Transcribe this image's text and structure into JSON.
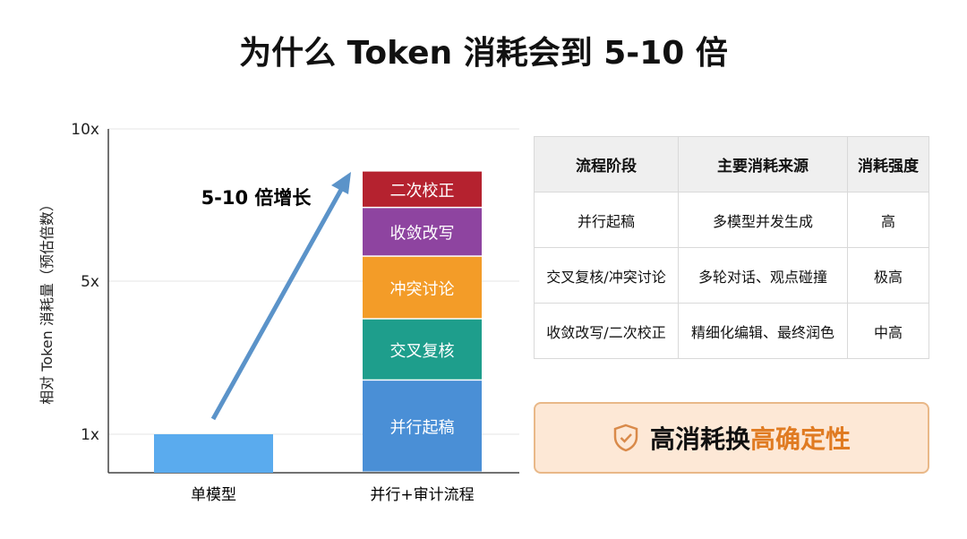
{
  "title": "为什么 Token 消耗会到 5-10 倍",
  "chart_data": {
    "type": "bar",
    "stacked": true,
    "title": "为什么 Token 消耗会到 5-10 倍",
    "ylabel": "相对 Token 消耗量（预估倍数）",
    "xlabel": "",
    "yticks": [
      "1x",
      "5x",
      "10x"
    ],
    "ytick_values": [
      1,
      5,
      10
    ],
    "ylim": [
      0,
      10
    ],
    "grid": true,
    "categories": [
      "单模型",
      "并行+审计流程"
    ],
    "single": {
      "category": "单模型",
      "value": 1,
      "color": "#5aabee"
    },
    "stack": [
      {
        "name": "并行起稿",
        "value": 2.4,
        "color": "#4a8fd6"
      },
      {
        "name": "交叉复核",
        "value": 1.6,
        "color": "#1e9e8c"
      },
      {
        "name": "冲突讨论",
        "value": 1.8,
        "color": "#f39c28"
      },
      {
        "name": "收敛改写",
        "value": 1.6,
        "color": "#8e44a0"
      },
      {
        "name": "二次校正",
        "value": 1.2,
        "color": "#b5222f"
      }
    ],
    "annotation": "5-10 倍增长",
    "arrow_color": "#5b93c9"
  },
  "table": {
    "headers": [
      "流程阶段",
      "主要消耗来源",
      "消耗强度"
    ],
    "rows": [
      [
        "并行起稿",
        "多模型并发生成",
        "高"
      ],
      [
        "交叉复核/冲突讨论",
        "多轮对话、观点碰撞",
        "极高"
      ],
      [
        "收敛改写/二次校正",
        "精细化编辑、最终润色",
        "中高"
      ]
    ]
  },
  "callout": {
    "icon": "shield-check-icon",
    "text_plain": "高消耗换",
    "text_highlight": "高确定性",
    "accent": "#e07b22"
  }
}
